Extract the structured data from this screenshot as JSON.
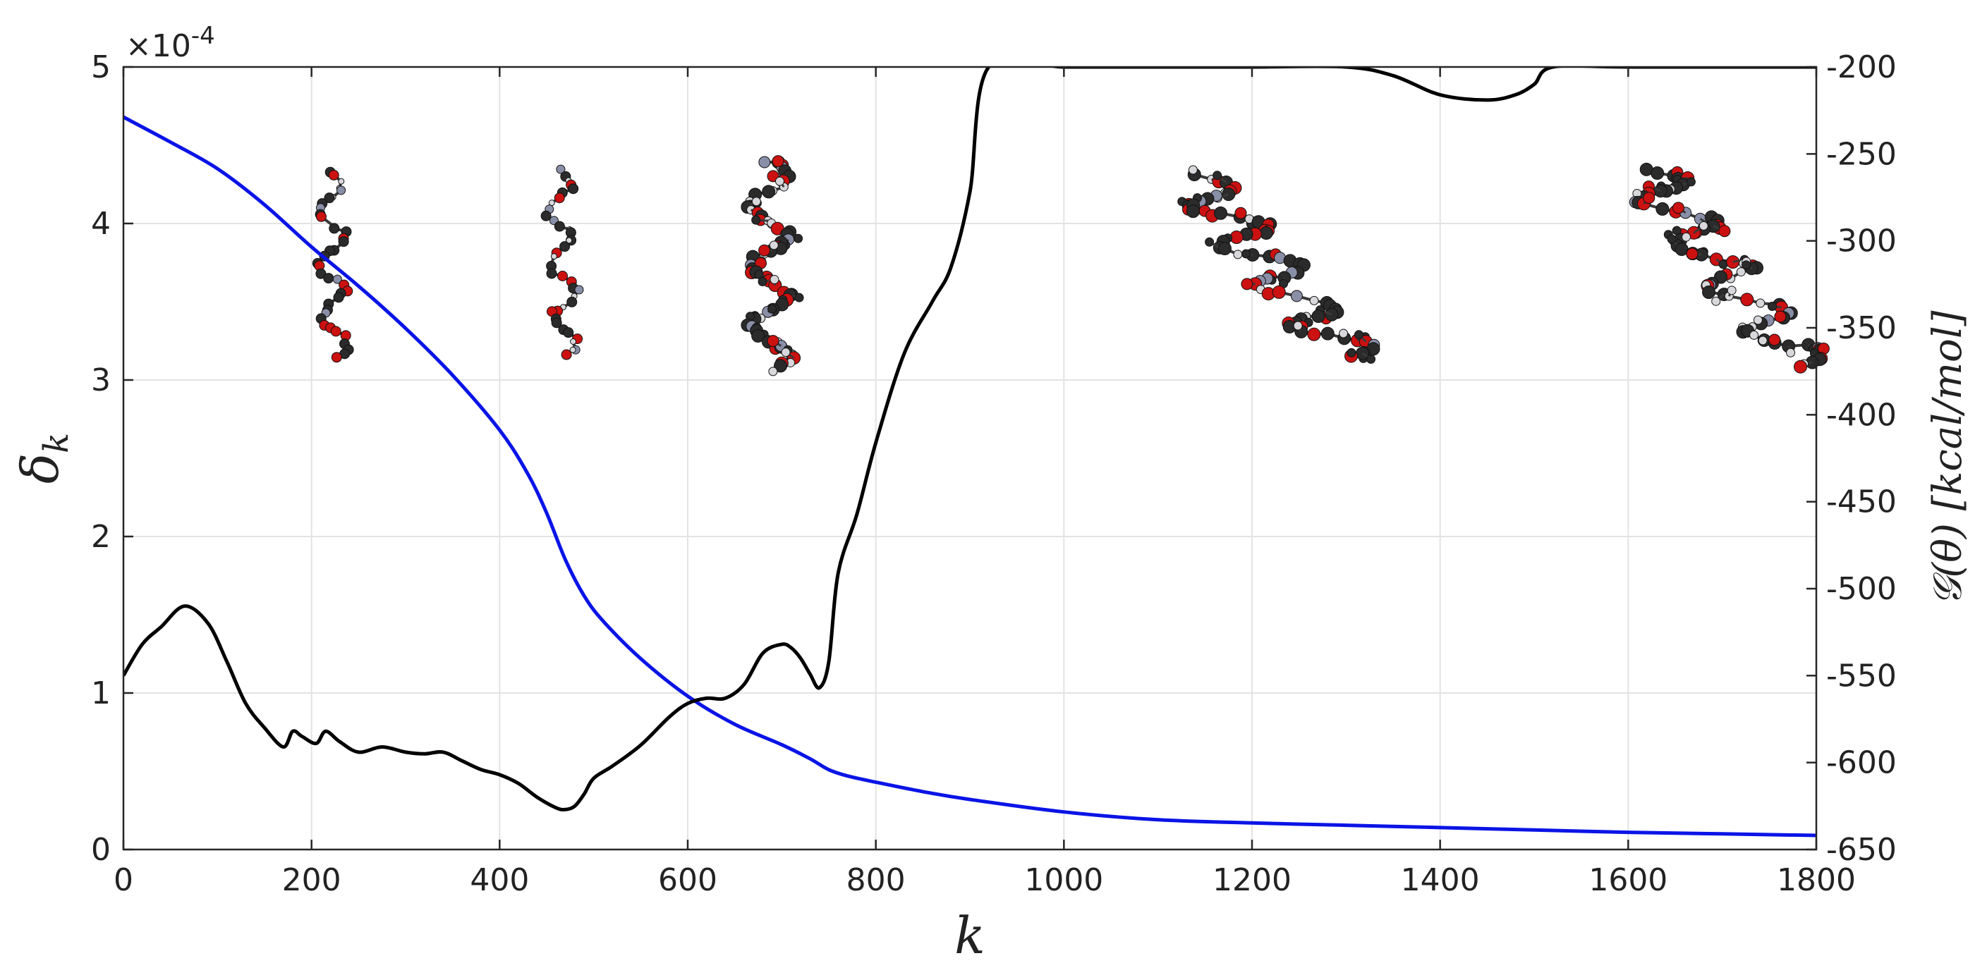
{
  "chart_data": {
    "type": "line",
    "title": "",
    "xlabel": "k",
    "ylabel_left": "δ",
    "ylabel_left_subscript": "k",
    "ylabel_right": "𝒢(θ) [kcal/mol]",
    "xlim": [
      0,
      1800
    ],
    "ylim_left": [
      0,
      5
    ],
    "ylim_left_exponent_label": "×10",
    "ylim_left_exponent_power": "-4",
    "ylim_right": [
      -650,
      -200
    ],
    "grid": true,
    "x_ticks": [
      "0",
      "200",
      "400",
      "600",
      "800",
      "1000",
      "1200",
      "1400",
      "1600",
      "1800"
    ],
    "y_left_ticks": [
      "0",
      "1",
      "2",
      "3",
      "4",
      "5"
    ],
    "y_right_ticks": [
      "-650",
      "-600",
      "-550",
      "-500",
      "-450",
      "-400",
      "-350",
      "-300",
      "-250",
      "-200"
    ],
    "series": [
      {
        "axis": "left",
        "color": "#0a14e6",
        "x": [
          0,
          50,
          100,
          150,
          200,
          250,
          300,
          350,
          400,
          430,
          450,
          470,
          490,
          510,
          550,
          600,
          650,
          700,
          730,
          750,
          770,
          800,
          850,
          900,
          1000,
          1100,
          1200,
          1300,
          1400,
          1500,
          1600,
          1700,
          1800
        ],
        "y": [
          4.68,
          4.52,
          4.35,
          4.12,
          3.85,
          3.6,
          3.33,
          3.03,
          2.68,
          2.4,
          2.15,
          1.85,
          1.62,
          1.46,
          1.22,
          0.98,
          0.8,
          0.67,
          0.58,
          0.51,
          0.47,
          0.43,
          0.37,
          0.32,
          0.24,
          0.19,
          0.17,
          0.155,
          0.14,
          0.125,
          0.11,
          0.1,
          0.09
        ]
      },
      {
        "axis": "right",
        "color": "#000000",
        "x": [
          0,
          20,
          40,
          65,
          90,
          110,
          130,
          150,
          170,
          180,
          190,
          205,
          215,
          230,
          250,
          275,
          300,
          320,
          340,
          360,
          380,
          400,
          420,
          440,
          460,
          470,
          480,
          490,
          500,
          520,
          550,
          580,
          600,
          620,
          640,
          660,
          680,
          700,
          710,
          720,
          730,
          740,
          750,
          760,
          780,
          800,
          830,
          860,
          880,
          900,
          920,
          1000,
          1100,
          1200,
          1300,
          1350,
          1400,
          1450,
          1480,
          1500,
          1520,
          1600,
          1800
        ],
        "y": [
          -550,
          -532,
          -522,
          -510,
          -520,
          -542,
          -566,
          -580,
          -591,
          -582,
          -585,
          -589,
          -582,
          -588,
          -594,
          -591,
          -594,
          -595,
          -594,
          -599,
          -604,
          -607,
          -612,
          -620,
          -626,
          -627,
          -625,
          -618,
          -609,
          -602,
          -590,
          -574,
          -566,
          -563,
          -563,
          -555,
          -537,
          -532,
          -534,
          -540,
          -549,
          -557,
          -542,
          -491,
          -457,
          -416,
          -365,
          -335,
          -315,
          -272,
          -200,
          -200,
          -200,
          -200,
          -200,
          -205,
          -216,
          -219,
          -216,
          -210,
          -200,
          -200,
          -200
        ]
      }
    ],
    "insets": [
      {
        "x_center": 235,
        "y_top_left_units": 4.33,
        "y_bottom_left_units": 3.15,
        "style": "sparse-chain"
      },
      {
        "x_center": 480,
        "y_top_left_units": 4.33,
        "y_bottom_left_units": 3.15,
        "style": "sparse-chain"
      },
      {
        "x_center": 700,
        "y_top_left_units": 4.4,
        "y_bottom_left_units": 3.05,
        "style": "dense-chain"
      },
      {
        "x_center": 1220,
        "y_top_left_units": 4.3,
        "y_bottom_left_units": 3.15,
        "style": "helix-tilted"
      },
      {
        "x_center": 1700,
        "y_top_left_units": 4.35,
        "y_bottom_left_units": 3.1,
        "style": "helix-tilted"
      }
    ],
    "colors": {
      "carbon": "#2b2b2b",
      "oxygen": "#cc1111",
      "nitrogen": "#8a8fa8",
      "hydrogen": "#d8d8dc",
      "bond": "#3a3a3a"
    }
  }
}
